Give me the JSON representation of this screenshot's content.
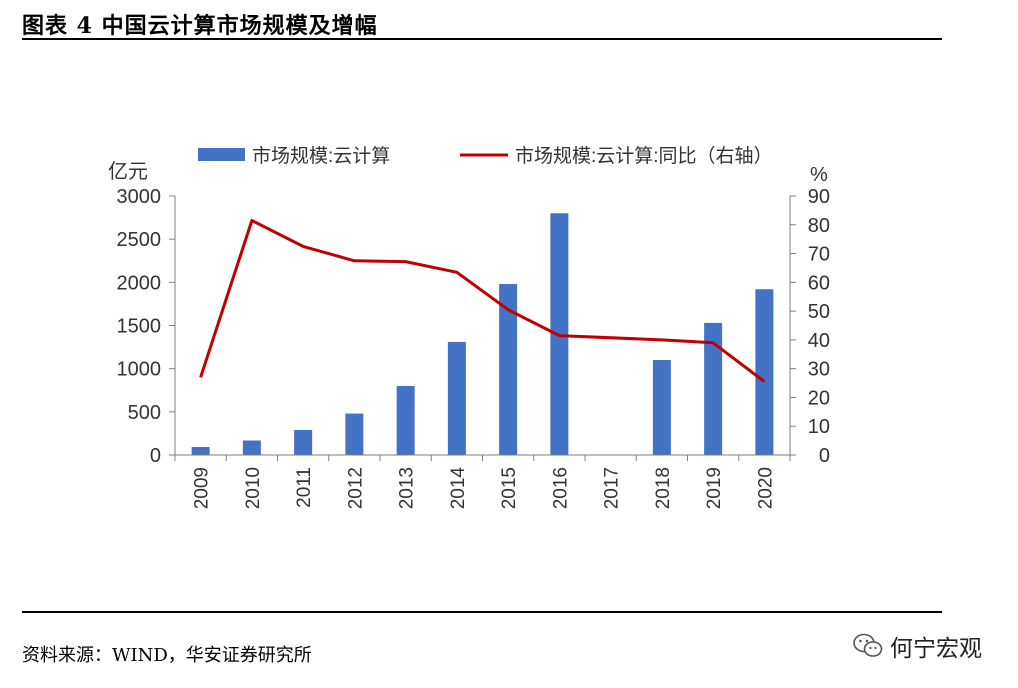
{
  "figure": {
    "title": "图表 4   中国云计算市场规模及增幅",
    "source": "资料来源：WIND，华安证券研究所",
    "brand": "何宁宏观",
    "brand_icon": "wechat-icon"
  },
  "colors": {
    "bar": "#4472C4",
    "line": "#C00000",
    "axis": "#7f7f7f"
  },
  "chart_data": {
    "type": "bar+line",
    "categories": [
      "2009",
      "2010",
      "2011",
      "2012",
      "2013",
      "2014",
      "2015",
      "2016",
      "2017",
      "2018",
      "2019",
      "2020"
    ],
    "series": [
      {
        "name": "市场规模:云计算",
        "type": "bar",
        "axis": "left",
        "values": [
          92,
          168,
          290,
          480,
          800,
          1310,
          1980,
          2800,
          null,
          1100,
          1530,
          1920
        ]
      },
      {
        "name": "市场规模:云计算:同比（右轴）",
        "type": "line",
        "axis": "right",
        "values": [
          27,
          81.5,
          72.5,
          67.5,
          67.2,
          63.5,
          50.5,
          41.5,
          null,
          40,
          39,
          25.5
        ]
      }
    ],
    "ylabel_left": "亿元",
    "ylabel_right": "%",
    "ylim_left": [
      0,
      3000
    ],
    "ylim_right": [
      0,
      90
    ],
    "yticks_left": [
      0,
      500,
      1000,
      1500,
      2000,
      2500,
      3000
    ],
    "yticks_right": [
      0,
      10,
      20,
      30,
      40,
      50,
      60,
      70,
      80,
      90
    ],
    "legend_position": "top",
    "grid": false
  }
}
